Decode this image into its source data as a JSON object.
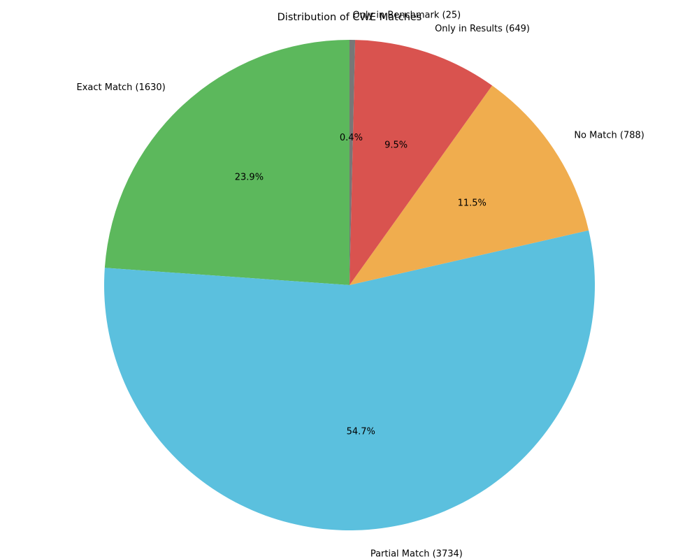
{
  "chart_data": {
    "type": "pie",
    "title": "Distribution of CWE Matches",
    "start_angle_deg": 90,
    "direction": "counterclockwise",
    "slices": [
      {
        "label": "Exact Match (1630)",
        "value": 1630,
        "percent_label": "23.9%",
        "color": "#5cb85c"
      },
      {
        "label": "Partial Match (3734)",
        "value": 3734,
        "percent_label": "54.7%",
        "color": "#5bc0de"
      },
      {
        "label": "No Match (788)",
        "value": 788,
        "percent_label": "11.5%",
        "color": "#f0ad4e"
      },
      {
        "label": "Only in Results (649)",
        "value": 649,
        "percent_label": "9.5%",
        "color": "#d9534f"
      },
      {
        "label": "Only in Benchmark (25)",
        "value": 25,
        "percent_label": "0.4%",
        "color": "#777777"
      }
    ]
  }
}
